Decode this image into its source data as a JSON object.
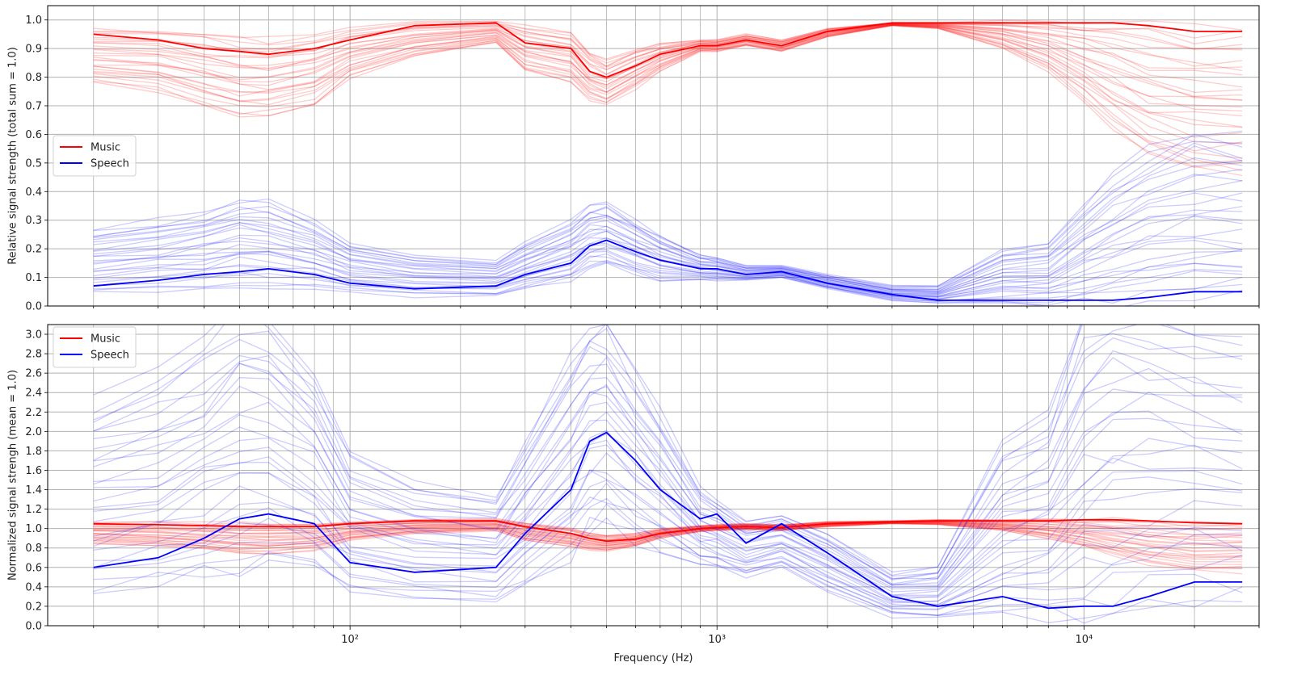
{
  "chart_data": [
    {
      "type": "line",
      "title": "",
      "xlabel": "",
      "ylabel": "Relative signal strength (total sum = 1.0)",
      "xscale": "log",
      "xlim": [
        15,
        30000
      ],
      "ylim": [
        0,
        1.05
      ],
      "yticks": [
        0.0,
        0.1,
        0.2,
        0.3,
        0.4,
        0.5,
        0.6,
        0.7,
        0.8,
        0.9,
        1.0
      ],
      "ytick_labels": [
        "0.0",
        "0.1",
        "0.2",
        "0.3",
        "0.4",
        "0.5",
        "0.6",
        "0.7",
        "0.8",
        "0.9",
        "1.0"
      ],
      "grid": true,
      "legend": {
        "position": "center-left",
        "entries": [
          {
            "label": "Music",
            "color": "#ff0000"
          },
          {
            "label": "Speech",
            "color": "#0000ff"
          }
        ]
      },
      "x": [
        20,
        30,
        40,
        50,
        60,
        80,
        100,
        150,
        250,
        300,
        400,
        450,
        500,
        600,
        700,
        900,
        1000,
        1200,
        1500,
        2000,
        3000,
        4000,
        6000,
        8000,
        10000,
        12000,
        15000,
        20000,
        27000
      ],
      "series": [
        {
          "name": "Music",
          "color": "#ff0000",
          "values": [
            0.95,
            0.93,
            0.9,
            0.89,
            0.88,
            0.9,
            0.93,
            0.98,
            0.99,
            0.92,
            0.9,
            0.82,
            0.8,
            0.84,
            0.88,
            0.91,
            0.91,
            0.93,
            0.91,
            0.96,
            0.99,
            0.99,
            0.99,
            0.99,
            0.99,
            0.99,
            0.98,
            0.96,
            0.96
          ]
        },
        {
          "name": "Speech",
          "color": "#0000ff",
          "values": [
            0.07,
            0.09,
            0.11,
            0.12,
            0.13,
            0.11,
            0.08,
            0.06,
            0.07,
            0.11,
            0.15,
            0.21,
            0.23,
            0.19,
            0.16,
            0.13,
            0.13,
            0.11,
            0.12,
            0.08,
            0.04,
            0.02,
            0.02,
            0.02,
            0.02,
            0.02,
            0.03,
            0.05,
            0.05
          ]
        }
      ],
      "band_music": {
        "upper": [
          0.97,
          0.97,
          0.96,
          0.95,
          0.94,
          0.95,
          0.97,
          0.99,
          0.995,
          0.98,
          0.96,
          0.89,
          0.86,
          0.9,
          0.92,
          0.93,
          0.93,
          0.95,
          0.93,
          0.97,
          0.99,
          0.99,
          0.995,
          0.995,
          0.995,
          0.995,
          0.99,
          0.97,
          0.97
        ],
        "lower": [
          0.78,
          0.75,
          0.7,
          0.66,
          0.66,
          0.7,
          0.8,
          0.87,
          0.92,
          0.82,
          0.78,
          0.72,
          0.7,
          0.76,
          0.82,
          0.89,
          0.89,
          0.91,
          0.89,
          0.94,
          0.98,
          0.97,
          0.9,
          0.82,
          0.72,
          0.62,
          0.52,
          0.47,
          0.46
        ]
      },
      "band_speech": {
        "upper": [
          0.27,
          0.3,
          0.33,
          0.37,
          0.36,
          0.3,
          0.22,
          0.18,
          0.16,
          0.22,
          0.3,
          0.35,
          0.36,
          0.3,
          0.25,
          0.18,
          0.17,
          0.14,
          0.14,
          0.11,
          0.07,
          0.07,
          0.2,
          0.22,
          0.36,
          0.45,
          0.55,
          0.62,
          0.6
        ],
        "lower": [
          0.04,
          0.05,
          0.06,
          0.07,
          0.07,
          0.06,
          0.05,
          0.035,
          0.035,
          0.06,
          0.09,
          0.13,
          0.14,
          0.11,
          0.09,
          0.09,
          0.09,
          0.09,
          0.1,
          0.06,
          0.02,
          0.01,
          0.01,
          0.005,
          0.005,
          0.01,
          0.02,
          0.03,
          0.03
        ]
      }
    },
    {
      "type": "line",
      "title": "",
      "xlabel": "Frequency (Hz)",
      "ylabel": "Normalized signal strengh (mean = 1.0)",
      "xscale": "log",
      "xlim": [
        15,
        30000
      ],
      "ylim": [
        0,
        3.1
      ],
      "xticks": [
        100,
        1000,
        10000
      ],
      "xtick_labels": [
        "10²",
        "10³",
        "10⁴"
      ],
      "yticks": [
        0.0,
        0.2,
        0.4,
        0.6,
        0.8,
        1.0,
        1.2,
        1.4,
        1.6,
        1.8,
        2.0,
        2.2,
        2.4,
        2.6,
        2.8,
        3.0
      ],
      "ytick_labels": [
        "0.0",
        "0.2",
        "0.4",
        "0.6",
        "0.8",
        "1.0",
        "1.2",
        "1.4",
        "1.6",
        "1.8",
        "2.0",
        "2.2",
        "2.4",
        "2.6",
        "2.8",
        "3.0"
      ],
      "grid": true,
      "legend": {
        "position": "top-left",
        "entries": [
          {
            "label": "Music",
            "color": "#ff0000"
          },
          {
            "label": "Speech",
            "color": "#0000ff"
          }
        ]
      },
      "x": [
        20,
        30,
        40,
        50,
        60,
        80,
        100,
        150,
        250,
        300,
        400,
        450,
        500,
        600,
        700,
        900,
        1000,
        1200,
        1500,
        2000,
        3000,
        4000,
        6000,
        8000,
        10000,
        12000,
        15000,
        20000,
        27000
      ],
      "series": [
        {
          "name": "Music",
          "color": "#ff0000",
          "values": [
            1.05,
            1.04,
            1.03,
            1.02,
            1.02,
            1.02,
            1.05,
            1.08,
            1.08,
            1.02,
            0.95,
            0.9,
            0.87,
            0.89,
            0.95,
            1.0,
            1.01,
            1.02,
            1.01,
            1.05,
            1.07,
            1.08,
            1.08,
            1.08,
            1.09,
            1.09,
            1.08,
            1.06,
            1.05
          ]
        },
        {
          "name": "Speech",
          "color": "#0000ff",
          "values": [
            0.6,
            0.7,
            0.9,
            1.1,
            1.15,
            1.05,
            0.65,
            0.55,
            0.6,
            0.95,
            1.4,
            1.9,
            1.99,
            1.7,
            1.4,
            1.1,
            1.15,
            0.85,
            1.05,
            0.75,
            0.3,
            0.2,
            0.3,
            0.18,
            0.2,
            0.2,
            0.3,
            0.45,
            0.45
          ]
        }
      ],
      "band_music": {
        "upper": [
          1.07,
          1.07,
          1.06,
          1.06,
          1.05,
          1.05,
          1.07,
          1.09,
          1.1,
          1.06,
          1.0,
          0.96,
          0.93,
          0.95,
          1.0,
          1.03,
          1.04,
          1.05,
          1.04,
          1.07,
          1.08,
          1.09,
          1.09,
          1.1,
          1.1,
          1.1,
          1.09,
          1.07,
          1.07
        ],
        "lower": [
          0.85,
          0.82,
          0.78,
          0.74,
          0.74,
          0.78,
          0.88,
          0.95,
          0.98,
          0.88,
          0.82,
          0.78,
          0.77,
          0.82,
          0.9,
          0.97,
          0.98,
          0.99,
          0.98,
          1.02,
          1.05,
          1.04,
          0.98,
          0.9,
          0.82,
          0.72,
          0.62,
          0.56,
          0.55
        ]
      },
      "band_speech": {
        "upper": [
          2.3,
          2.6,
          2.9,
          3.3,
          3.2,
          2.6,
          1.8,
          1.5,
          1.35,
          1.9,
          2.8,
          3.1,
          3.15,
          2.6,
          2.2,
          1.4,
          1.3,
          1.1,
          1.15,
          0.95,
          0.55,
          0.6,
          1.9,
          2.2,
          3.3,
          3.5,
          3.6,
          3.3,
          3.2
        ],
        "lower": [
          0.3,
          0.4,
          0.5,
          0.55,
          0.6,
          0.55,
          0.35,
          0.25,
          0.22,
          0.4,
          0.65,
          0.95,
          1.05,
          0.85,
          0.75,
          0.6,
          0.6,
          0.5,
          0.6,
          0.35,
          0.1,
          0.07,
          0.07,
          0.05,
          0.05,
          0.06,
          0.12,
          0.26,
          0.26
        ]
      }
    }
  ]
}
